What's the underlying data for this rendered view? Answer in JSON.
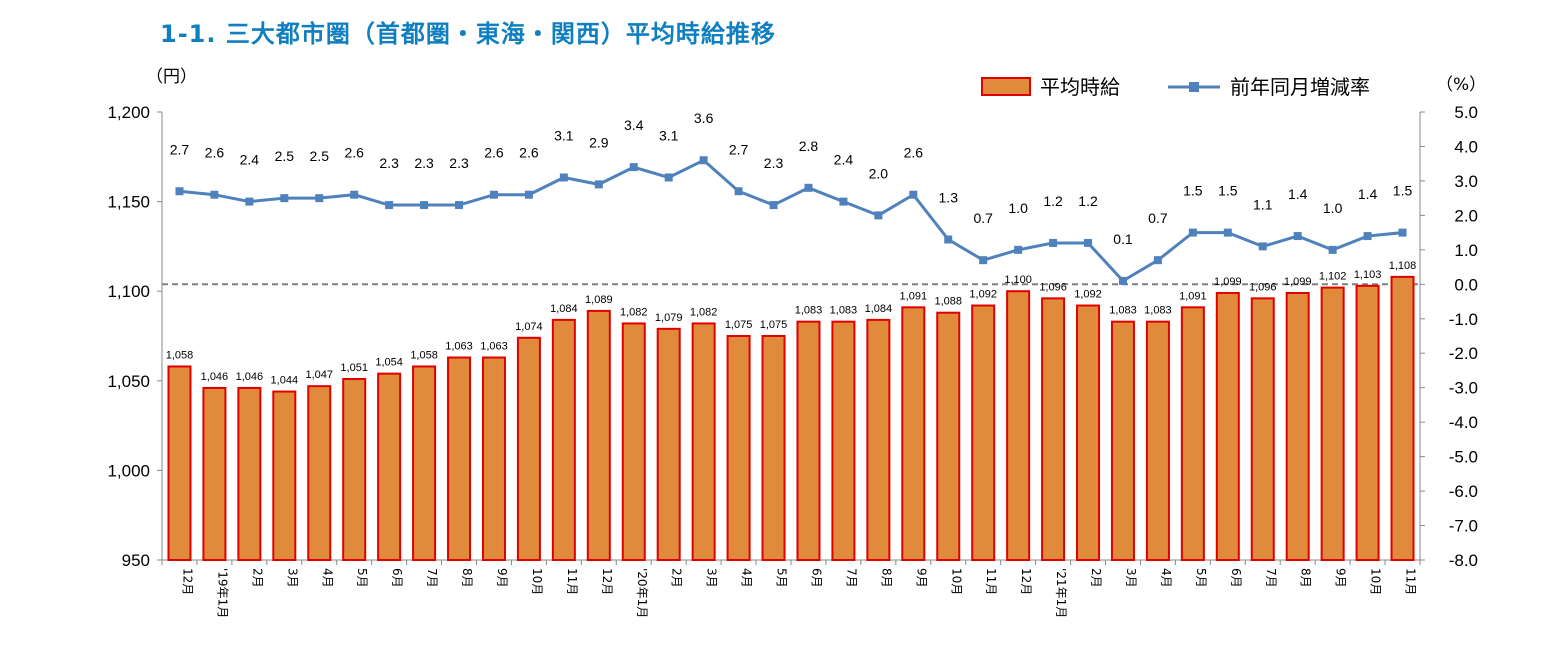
{
  "title": "1-1.  三大都市圏（首都圏・東海・関西）平均時給推移",
  "chart_data": {
    "type": "bar",
    "categories": [
      "12月",
      "'19年1月",
      "2月",
      "3月",
      "4月",
      "5月",
      "6月",
      "7月",
      "8月",
      "9月",
      "10月",
      "11月",
      "12月",
      "'20年1月",
      "2月",
      "3月",
      "4月",
      "5月",
      "6月",
      "7月",
      "8月",
      "9月",
      "10月",
      "11月",
      "12月",
      "'21年1月",
      "2月",
      "3月",
      "4月",
      "5月",
      "6月",
      "7月",
      "8月",
      "9月",
      "10月",
      "11月"
    ],
    "series": [
      {
        "name": "平均時給",
        "type": "bar",
        "axis": "left",
        "values": [
          1058,
          1046,
          1046,
          1044,
          1047,
          1051,
          1054,
          1058,
          1063,
          1063,
          1074,
          1084,
          1089,
          1082,
          1079,
          1082,
          1075,
          1075,
          1083,
          1083,
          1084,
          1091,
          1088,
          1092,
          1100,
          1096,
          1092,
          1083,
          1083,
          1091,
          1099,
          1096,
          1099,
          1102,
          1103,
          1108
        ],
        "labels": [
          "1,058",
          "1,046",
          "1,046",
          "1,044",
          "1,047",
          "1,051",
          "1,054",
          "1,058",
          "1,063",
          "1,063",
          "1,074",
          "1,084",
          "1,089",
          "1,082",
          "1,079",
          "1,082",
          "1,075",
          "1,075",
          "1,083",
          "1,083",
          "1,084",
          "1,091",
          "1,088",
          "1,092",
          "1,100",
          "1,096",
          "1,092",
          "1,083",
          "1,083",
          "1,091",
          "1,099",
          "1,096",
          "1,099",
          "1,102",
          "1,103",
          "1,108"
        ]
      },
      {
        "name": "前年同月増減率",
        "type": "line",
        "axis": "right",
        "values": [
          2.7,
          2.6,
          2.4,
          2.5,
          2.5,
          2.6,
          2.3,
          2.3,
          2.3,
          2.6,
          2.6,
          3.1,
          2.9,
          3.4,
          3.1,
          3.6,
          2.7,
          2.3,
          2.8,
          2.4,
          2.0,
          2.6,
          1.3,
          0.7,
          1.0,
          1.2,
          1.2,
          0.1,
          0.7,
          1.5,
          1.5,
          1.1,
          1.4,
          1.0,
          1.4,
          1.5
        ],
        "labels": [
          "2.7",
          "2.6",
          "2.4",
          "2.5",
          "2.5",
          "2.6",
          "2.3",
          "2.3",
          "2.3",
          "2.6",
          "2.6",
          "3.1",
          "2.9",
          "3.4",
          "3.1",
          "3.6",
          "2.7",
          "2.3",
          "2.8",
          "2.4",
          "2.0",
          "2.6",
          "1.3",
          "0.7",
          "1.0",
          "1.2",
          "1.2",
          "0.1",
          "0.7",
          "1.5",
          "1.5",
          "1.1",
          "1.4",
          "1.0",
          "1.4",
          "1.5"
        ]
      }
    ],
    "ylabel": "（円）",
    "y2label": "（%）",
    "ylim": [
      950,
      1200
    ],
    "y2lim": [
      -8.0,
      5.0
    ],
    "yticks": [
      "1,200",
      "1,150",
      "1,100",
      "1,050",
      "1,000",
      "950"
    ],
    "y2ticks": [
      "5.0",
      "4.0",
      "3.0",
      "2.0",
      "1.0",
      "0.0",
      "-1.0",
      "-2.0",
      "-3.0",
      "-4.0",
      "-5.0",
      "-6.0",
      "-7.0",
      "-8.0"
    ],
    "legend_position": "top-right",
    "grid": false,
    "zero_reference_line": "dashed",
    "colors": {
      "bar_fill": "#e08a3c",
      "bar_edge": "#e00000",
      "line": "#4f81bd",
      "title": "#0f7fc0"
    }
  }
}
